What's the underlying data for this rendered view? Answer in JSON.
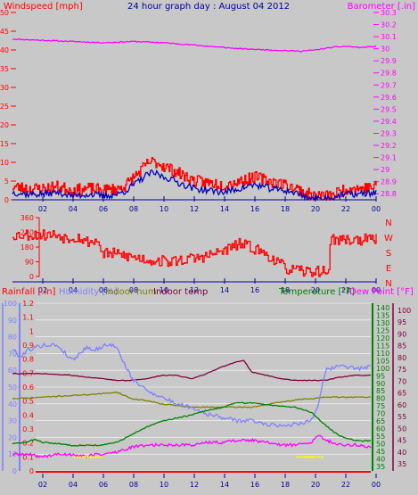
{
  "colors": {
    "background": "#c8c8c8",
    "windspeed": "#ff0000",
    "windgust": "#0000c0",
    "barometer": "#ff00ff",
    "direction": "#ff0000",
    "humidity": "#8080ff",
    "indoor_hum": "#808000",
    "indoor_temp": "#800040",
    "temperature": "#008000",
    "dew_point": "#ff00ff",
    "rain_axis": "#8080ff",
    "rain_marker": "#ffff00",
    "hour_ticks": "#0000a0",
    "grid": "#ffffff"
  },
  "chart_data": [
    {
      "id": "wind-baro",
      "type": "line",
      "title": "24 hour graph day : August 04 2012",
      "left_axis_label": "Windspeed [mph]",
      "right_axis_label": "Barometer [.in]",
      "x_ticks": [
        "02",
        "04",
        "06",
        "08",
        "10",
        "12",
        "14",
        "16",
        "18",
        "20",
        "22",
        "00"
      ],
      "left_ticks": [
        "0",
        "5",
        "10",
        "15",
        "20",
        "25",
        "30",
        "35",
        "40",
        "45",
        "50"
      ],
      "right_ticks": [
        "28.8",
        "28.9",
        "29",
        "29.1",
        "29.2",
        "29.3",
        "29.4",
        "29.5",
        "29.6",
        "29.7",
        "29.8",
        "29.9",
        "30",
        "30.1",
        "30.2",
        "30.3"
      ],
      "left_range": [
        0,
        50
      ],
      "right_range": [
        28.75,
        30.3
      ],
      "x_range": [
        0,
        24
      ],
      "series": [
        {
          "name": "Windspeed",
          "axis": "left",
          "noise": 1.6,
          "x": [
            0,
            1,
            2,
            3,
            4,
            5,
            6,
            7,
            7.5,
            8,
            8.5,
            9,
            9.5,
            10,
            10.5,
            11,
            12,
            13,
            14,
            15,
            16,
            17,
            18,
            19,
            19.5,
            20,
            21,
            22,
            23,
            24
          ],
          "y": [
            3.5,
            3,
            3,
            3.5,
            2.5,
            3,
            2.5,
            3,
            4,
            6,
            8,
            10,
            10,
            9,
            8,
            7,
            5,
            4.5,
            4,
            5,
            6,
            5,
            4,
            2.5,
            1.5,
            1,
            1,
            3,
            3,
            3.5
          ]
        },
        {
          "name": "Gust",
          "axis": "left",
          "noise": 0.9,
          "x": [
            0,
            1,
            2,
            3,
            4,
            5,
            6,
            7,
            7.5,
            8,
            8.5,
            9,
            9.5,
            10,
            10.5,
            11,
            12,
            13,
            14,
            15,
            16,
            17,
            18,
            19,
            19.5,
            20,
            21,
            22,
            23,
            24
          ],
          "y": [
            2,
            1.5,
            1.5,
            2,
            1,
            1.5,
            1,
            1.5,
            2.5,
            4,
            5.5,
            7,
            7,
            6,
            5.5,
            4.5,
            3,
            2.5,
            2,
            3,
            4,
            3,
            2.5,
            1.5,
            0.5,
            0.3,
            0.5,
            1.5,
            1.5,
            2
          ]
        },
        {
          "name": "Barometer",
          "axis": "right",
          "noise": 0.004,
          "x": [
            0,
            2,
            4,
            6,
            8,
            10,
            11,
            13,
            15,
            17,
            19,
            20,
            21,
            22,
            23,
            24
          ],
          "y": [
            30.08,
            30.07,
            30.06,
            30.05,
            30.06,
            30.05,
            30.04,
            30.02,
            30.0,
            29.99,
            29.98,
            29.99,
            30.01,
            30.02,
            30.01,
            30.02
          ]
        }
      ]
    },
    {
      "id": "direction",
      "type": "line",
      "right_labels": [
        "N",
        "W",
        "S",
        "E",
        "N"
      ],
      "left_ticks": [
        "0",
        "90",
        "180",
        "270",
        "360"
      ],
      "x_ticks": [
        "02",
        "04",
        "06",
        "08",
        "10",
        "12",
        "14",
        "16",
        "18",
        "20",
        "22",
        "00"
      ],
      "range": [
        0,
        360
      ],
      "x_range": [
        0,
        24
      ],
      "series": [
        {
          "name": "Wind direction",
          "noise": 35,
          "x": [
            0,
            1.7,
            1.7,
            3.2,
            3.2,
            4.6,
            4.6,
            5.8,
            5.8,
            6.5,
            7.3,
            7.8,
            8.5,
            9,
            9.8,
            10.5,
            11,
            12,
            13,
            14,
            15,
            16,
            17,
            18,
            19,
            19.8,
            20,
            20.9,
            20.9,
            24
          ],
          "y": [
            255,
            255,
            255,
            255,
            240,
            240,
            215,
            215,
            140,
            140,
            130,
            120,
            110,
            100,
            95,
            90,
            100,
            110,
            130,
            160,
            200,
            170,
            120,
            50,
            30,
            30,
            30,
            30,
            225,
            225
          ]
        }
      ]
    },
    {
      "id": "temps",
      "type": "line",
      "legend": [
        "Rainfall [.in]",
        "Humidity [%]",
        "Indoor hum",
        "Indoor temp",
        "Temperature [°F]",
        "Dew Point [°F]"
      ],
      "rain_ticks": [
        "0",
        "0.1",
        "0.2",
        "0.3",
        "0.4",
        "0.5",
        "0.6",
        "0.7",
        "0.8",
        "0.9",
        "1",
        "1.1",
        "1.2"
      ],
      "hum_ticks": [
        "0",
        "10",
        "20",
        "30",
        "40",
        "50",
        "60",
        "70",
        "80",
        "90",
        "100"
      ],
      "temp_ticks": [
        "35",
        "40",
        "45",
        "50",
        "55",
        "60",
        "65",
        "70",
        "75",
        "80",
        "85",
        "90",
        "95",
        "100",
        "105",
        "110",
        "115",
        "120",
        "125",
        "130",
        "135",
        "140"
      ],
      "dew_ticks": [
        "35",
        "40",
        "45",
        "50",
        "55",
        "60",
        "65",
        "70",
        "75",
        "80",
        "85",
        "90",
        "95",
        "100"
      ],
      "x_ticks": [
        "02",
        "04",
        "06",
        "08",
        "10",
        "12",
        "14",
        "16",
        "18",
        "20",
        "22",
        "00"
      ],
      "hum_range": [
        0,
        100
      ],
      "temp_range": [
        32,
        143
      ],
      "dew_range": [
        32,
        103
      ],
      "x_range": [
        0,
        24
      ],
      "series": [
        {
          "name": "Humidity",
          "axis": "hum",
          "noise": 1.2,
          "x": [
            0,
            0.5,
            1,
            2,
            3,
            4,
            5,
            5.5,
            6,
            6.5,
            7,
            8,
            9,
            10,
            11,
            12,
            13,
            14,
            15,
            16,
            17,
            18,
            19,
            20,
            20.5,
            21,
            22,
            23,
            24
          ],
          "y": [
            73,
            68,
            72,
            75,
            75,
            66,
            74,
            72,
            74,
            76,
            73,
            55,
            48,
            44,
            40,
            38,
            34,
            32,
            30,
            30,
            28,
            27,
            28,
            30,
            40,
            60,
            63,
            61,
            62
          ]
        },
        {
          "name": "Indoor hum",
          "axis": "hum",
          "noise": 0.3,
          "x": [
            0,
            2,
            4,
            6,
            7,
            8,
            9,
            10,
            12,
            14,
            16,
            18,
            19.5,
            20,
            21,
            22,
            24
          ],
          "y": [
            43,
            44,
            45,
            46,
            47,
            43,
            42,
            40,
            38,
            38,
            38,
            41,
            43,
            43,
            44,
            44,
            44
          ]
        },
        {
          "name": "Indoor temp",
          "axis": "hum",
          "noise": 0.2,
          "x": [
            0,
            2,
            4,
            6,
            7,
            8,
            9,
            10,
            11,
            12,
            13,
            14,
            15,
            15.5,
            16,
            17,
            18,
            19,
            20,
            21,
            22,
            23,
            24
          ],
          "y": [
            58,
            58,
            57,
            55,
            54,
            54,
            55,
            57,
            57,
            55,
            58,
            62,
            65,
            66,
            59,
            57,
            55,
            54,
            54,
            54,
            56,
            57,
            57
          ]
        },
        {
          "name": "Temperature",
          "axis": "temp",
          "noise": 0.4,
          "x": [
            0,
            1,
            1.5,
            2,
            3,
            4,
            5,
            6,
            7,
            8,
            9,
            10,
            11,
            12,
            13,
            14,
            15,
            16,
            17,
            18,
            19,
            20,
            21,
            21.5,
            22,
            23,
            24
          ],
          "y": [
            50,
            51,
            53,
            51,
            50,
            49,
            49,
            49,
            51,
            56,
            61,
            65,
            67,
            69,
            72,
            74,
            77,
            77,
            76,
            75,
            74,
            71,
            62,
            58,
            55,
            52,
            52
          ]
        },
        {
          "name": "Dew Point",
          "axis": "dew",
          "noise": 0.6,
          "x": [
            0,
            1,
            2,
            3,
            4,
            5,
            5.5,
            6,
            7,
            8,
            9,
            10,
            11,
            12,
            13,
            14,
            15,
            16,
            17,
            18,
            19,
            20,
            20.5,
            21,
            21.5,
            22,
            23,
            24
          ],
          "y": [
            39,
            39,
            38,
            39,
            39,
            38,
            39,
            39,
            40,
            42,
            43,
            43,
            43,
            43,
            44,
            44,
            45,
            45,
            44,
            43,
            43,
            44,
            47,
            45,
            44,
            43,
            43,
            42
          ]
        },
        {
          "name": "Rainfall",
          "axis": "rain",
          "noise": 0,
          "x": [
            0,
            24
          ],
          "y": [
            0,
            0
          ]
        }
      ],
      "rain_markers": [
        {
          "x": 4.7,
          "y": 0.1
        },
        {
          "x": 5.4,
          "y": 0.1
        },
        {
          "x": 19.6,
          "y": 0.1
        },
        {
          "x": 20.2,
          "y": 0.1
        }
      ]
    }
  ]
}
